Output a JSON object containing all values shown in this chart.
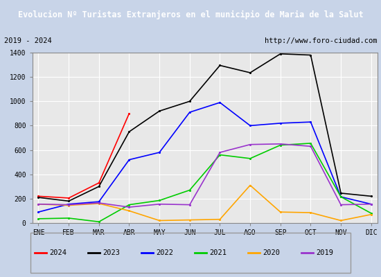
{
  "title": "Evolucion Nº Turistas Extranjeros en el municipio de Maria de la Salut",
  "subtitle_left": "2019 - 2024",
  "subtitle_right": "http://www.foro-ciudad.com",
  "x_labels": [
    "ENE",
    "FEB",
    "MAR",
    "ABR",
    "MAY",
    "JUN",
    "JUL",
    "AGO",
    "SEP",
    "OCT",
    "NOV",
    "DIC"
  ],
  "ylim": [
    0,
    1400
  ],
  "yticks": [
    0,
    200,
    400,
    600,
    800,
    1000,
    1200,
    1400
  ],
  "series": {
    "2024": {
      "color": "#ff0000",
      "data": [
        220,
        205,
        330,
        900,
        null,
        null,
        null,
        null,
        null,
        null,
        null,
        null
      ]
    },
    "2023": {
      "color": "#000000",
      "data": [
        210,
        180,
        300,
        750,
        920,
        1000,
        1295,
        1235,
        1390,
        1380,
        245,
        220
      ]
    },
    "2022": {
      "color": "#0000ff",
      "data": [
        90,
        155,
        175,
        520,
        580,
        910,
        990,
        800,
        820,
        830,
        215,
        155
      ]
    },
    "2021": {
      "color": "#00cc00",
      "data": [
        35,
        40,
        10,
        150,
        185,
        270,
        560,
        530,
        640,
        655,
        215,
        80
      ]
    },
    "2020": {
      "color": "#ffa500",
      "data": [
        155,
        145,
        160,
        100,
        20,
        25,
        30,
        310,
        90,
        85,
        20,
        70
      ]
    },
    "2019": {
      "color": "#9933cc",
      "data": [
        155,
        150,
        165,
        130,
        155,
        150,
        580,
        645,
        650,
        630,
        150,
        155
      ]
    }
  },
  "title_bg_color": "#4a7cb8",
  "title_text_color": "#ffffff",
  "plot_bg_color": "#e8e8e8",
  "outer_bg_color": "#c8d4e8",
  "grid_color": "#ffffff",
  "border_color": "#4a7cb8"
}
